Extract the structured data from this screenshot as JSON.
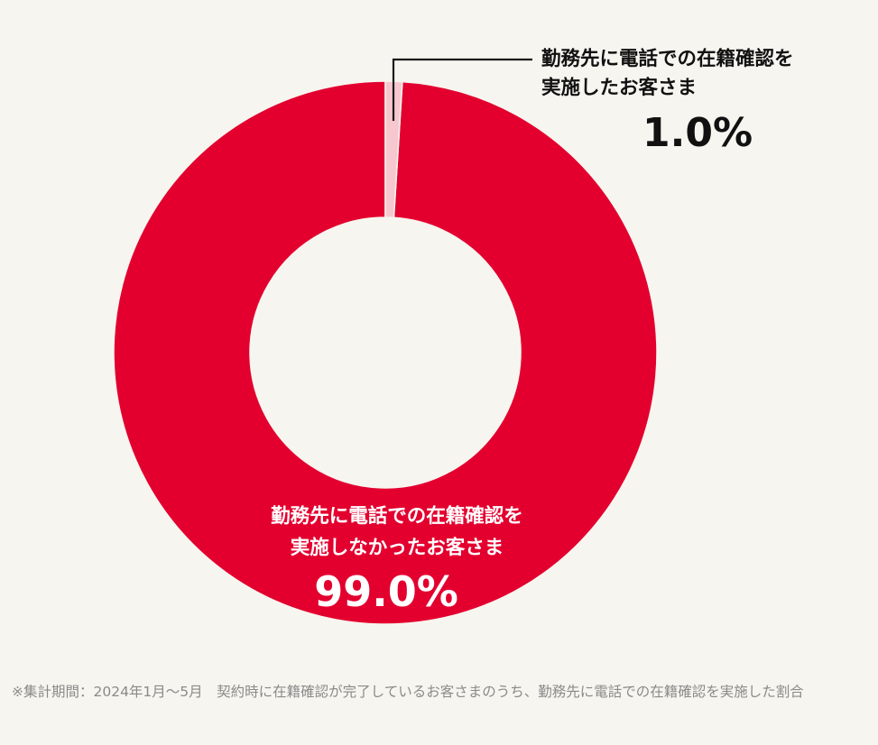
{
  "chart_data": {
    "type": "pie",
    "donut": true,
    "slices": [
      {
        "name": "not-verified",
        "label_lines": [
          "勤務先に電話での在籍確認を",
          "実施しなかったお客さま"
        ],
        "value": 99.0,
        "value_label": "99.0%",
        "color": "#e3002f"
      },
      {
        "name": "verified",
        "label_lines": [
          "勤務先に電話での在籍確認を",
          "実施したお客さま"
        ],
        "value": 1.0,
        "value_label": "1.0%",
        "color": "#f7c7cf"
      }
    ],
    "start": "top",
    "direction": "clockwise"
  },
  "footnote": {
    "text": "※集計期間：2024年1月〜5月　契約時に在籍確認が完了しているお客さまのうち、勤務先に電話での在籍確認を実施した割合"
  },
  "colors": {
    "background": "#f7f5ef",
    "leader_line": "#1a1a1a",
    "inner_label": "#ffffff",
    "outer_label": "#111111"
  }
}
